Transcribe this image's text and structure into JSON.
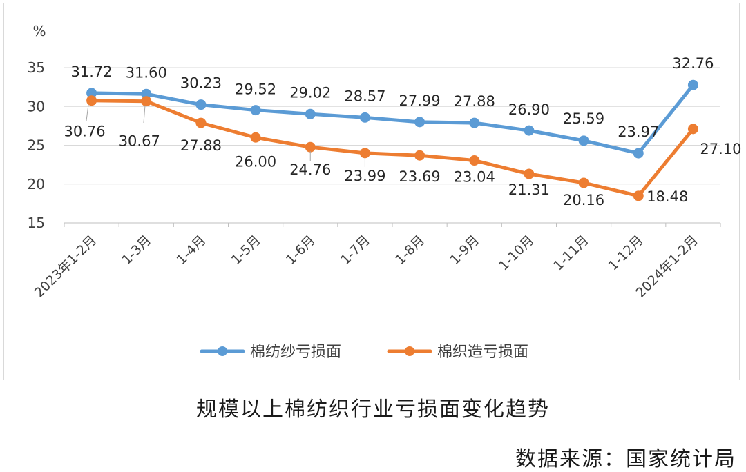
{
  "chart_data": {
    "type": "line",
    "ylabel": "%",
    "ylim": [
      15,
      35
    ],
    "yticks": [
      15,
      20,
      25,
      30,
      35
    ],
    "categories": [
      "2023年1-2月",
      "1-3月",
      "1-4月",
      "1-5月",
      "1-6月",
      "1-7月",
      "1-8月",
      "1-9月",
      "1-10月",
      "1-11月",
      "1-12月",
      "2024年1-2月"
    ],
    "series": [
      {
        "name": "棉纺纱亏损面",
        "color": "#5b9bd5",
        "values": [
          31.72,
          31.6,
          30.23,
          29.52,
          29.02,
          28.57,
          27.99,
          27.88,
          26.9,
          25.59,
          23.97,
          32.76
        ],
        "labels": [
          "31.72",
          "31.60",
          "30.23",
          "29.52",
          "29.02",
          "28.57",
          "27.99",
          "27.88",
          "26.90",
          "25.59",
          "23.97",
          "32.76"
        ]
      },
      {
        "name": "棉织造亏损面",
        "color": "#ed7d31",
        "values": [
          30.76,
          30.67,
          27.88,
          26.0,
          24.76,
          23.99,
          23.69,
          23.04,
          21.31,
          20.16,
          18.48,
          27.1
        ],
        "labels": [
          "30.76",
          "30.67",
          "27.88",
          "26.00",
          "24.76",
          "23.99",
          "23.69",
          "23.04",
          "21.31",
          "20.16",
          "18.48",
          "27.10"
        ]
      }
    ],
    "grid": true,
    "legend": "bottom"
  },
  "caption": "规模以上棉纺织行业亏损面变化趋势",
  "source": "数据来源：国家统计局"
}
